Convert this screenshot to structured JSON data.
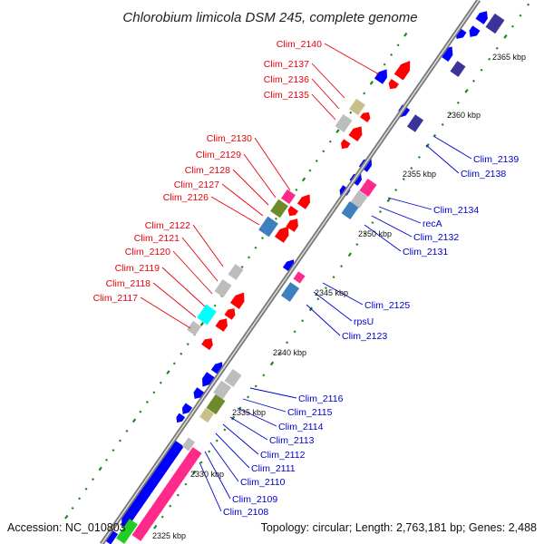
{
  "title": "Chlorobium limicola DSM 245, complete genome",
  "footer": {
    "accession": "Accession: NC_010803",
    "topology": "Topology: circular; Length: 2,763,181 bp; Genes: 2,488"
  },
  "colors": {
    "backbone": "#777777",
    "left_labels": "#e8000b",
    "right_labels": "#0000cc",
    "ticks": "#1a8a1a",
    "gene_red": "#ff0000",
    "gene_blue": "#0000ff",
    "gene_navy": "#3a3399",
    "gene_pink": "#ff2a8a",
    "gene_olive": "#6f8a2a",
    "gene_khaki": "#c8c08a",
    "gene_steel": "#3d7fbf",
    "gene_gray": "#bdbdbd",
    "gene_cyan": "#00ffff",
    "gene_green": "#22cc22"
  },
  "scale_labels": [
    "2365 kbp",
    "2360 kbp",
    "2355 kbp",
    "2350 kbp",
    "2345 kbp",
    "2340 kbp",
    "2335 kbp",
    "2330 kbp",
    "2325 kbp"
  ],
  "left_labels": [
    "Clim_2140",
    "Clim_2137",
    "Clim_2136",
    "Clim_2135",
    "Clim_2130",
    "Clim_2129",
    "Clim_2128",
    "Clim_2127",
    "Clim_2126",
    "Clim_2122",
    "Clim_2121",
    "Clim_2120",
    "Clim_2119",
    "Clim_2118",
    "Clim_2117"
  ],
  "right_labels": [
    "Clim_2139",
    "Clim_2138",
    "Clim_2134",
    "recA",
    "Clim_2132",
    "Clim_2131",
    "Clim_2125",
    "rpsU",
    "Clim_2123",
    "Clim_2116",
    "Clim_2115",
    "Clim_2114",
    "Clim_2113",
    "Clim_2112",
    "Clim_2111",
    "Clim_2110",
    "Clim_2109",
    "Clim_2108"
  ]
}
